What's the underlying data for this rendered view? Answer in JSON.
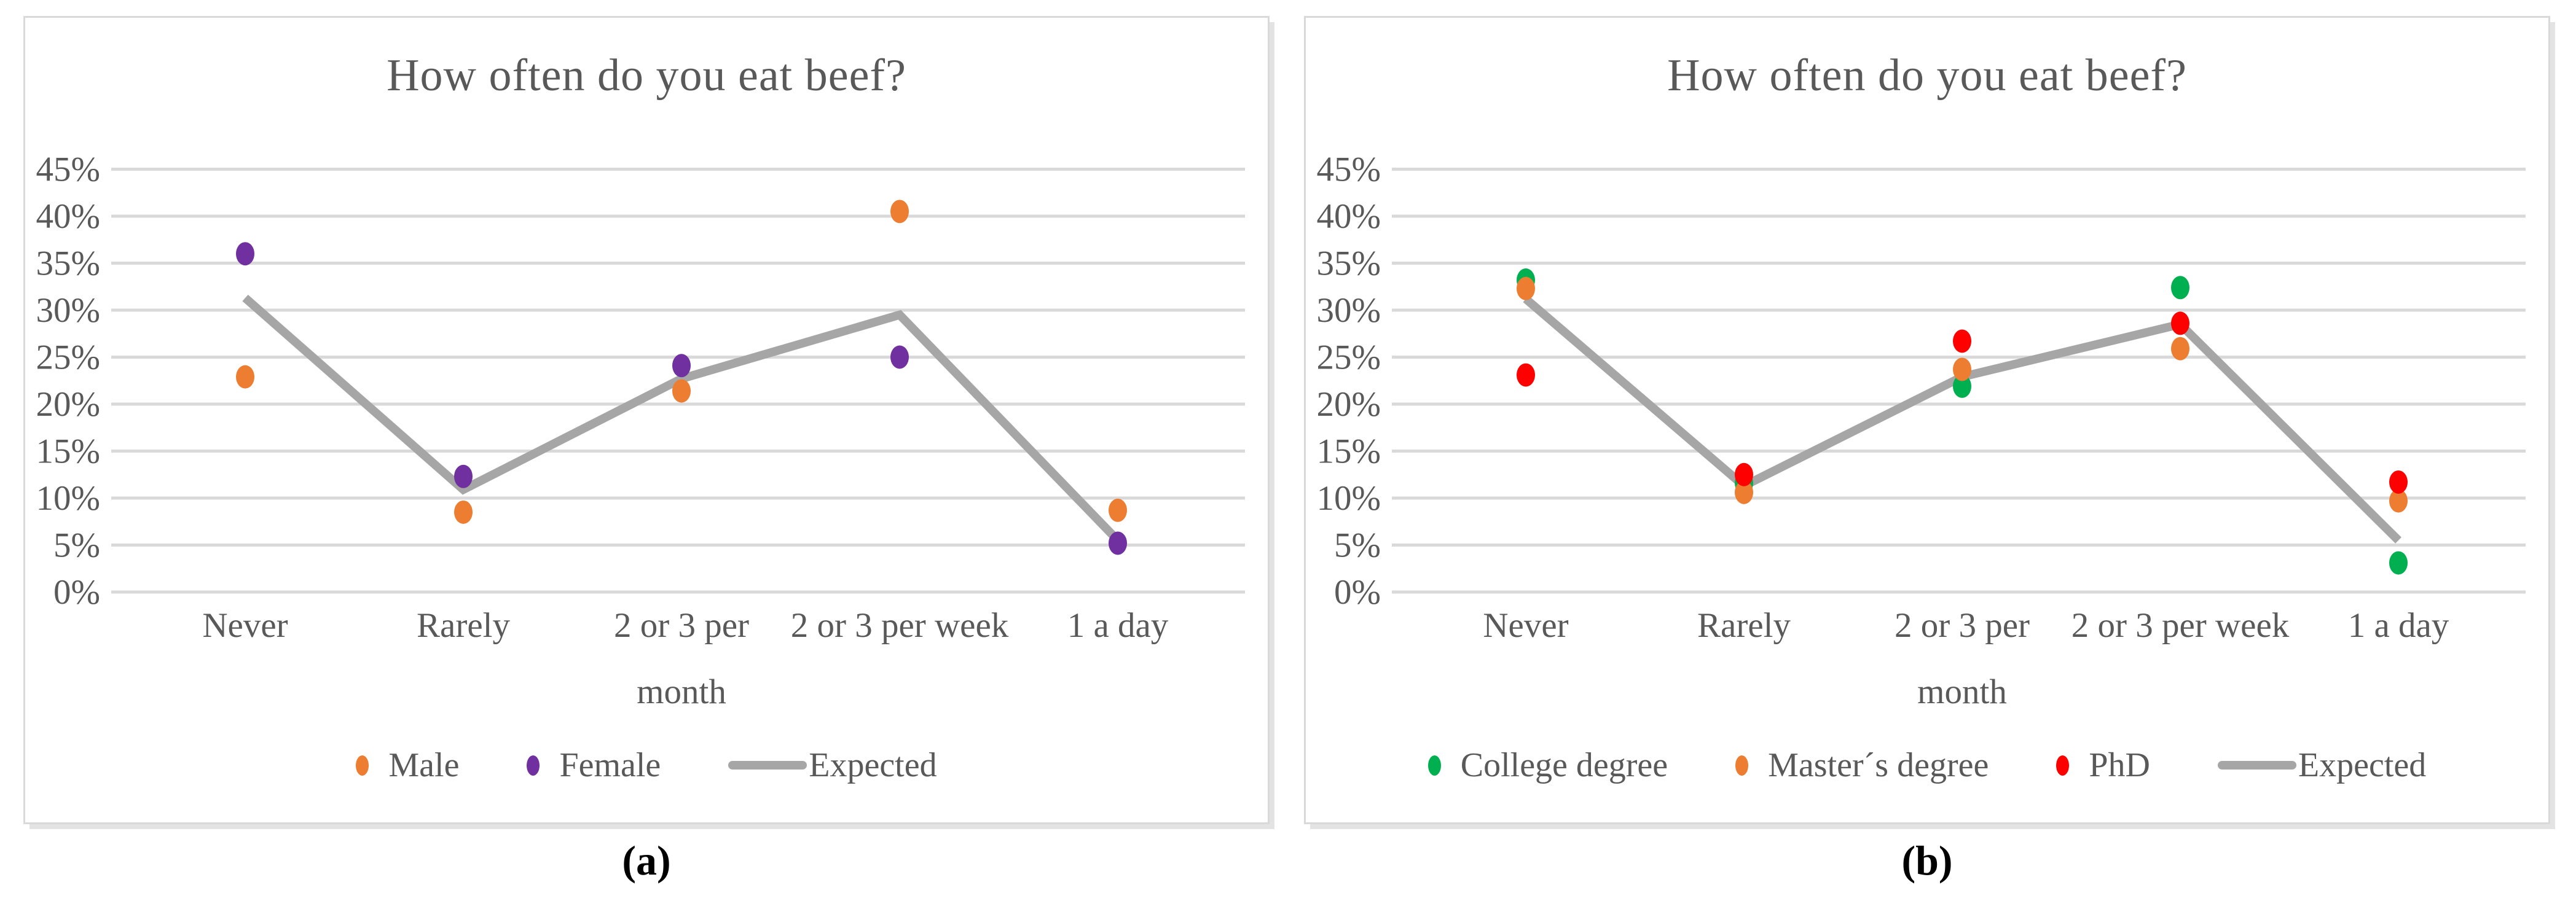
{
  "figure": {
    "captions": [
      {
        "label": "(a)"
      },
      {
        "label": "(b)"
      }
    ]
  },
  "colors": {
    "title_text": "#595959",
    "axis_text": "#595959",
    "gridline": "#D9D9D9",
    "panel_border": "#D9D9D9",
    "male_orange": "#ED7D31",
    "female_purple": "#7030A0",
    "college_green": "#00B050",
    "masters_orange": "#ED7D31",
    "phd_red": "#FF0000",
    "expected_gray": "#A6A6A6"
  },
  "chart_data": [
    {
      "type": "scatter",
      "title": "How often do you eat beef?",
      "categories": [
        [
          "Never"
        ],
        [
          "Rarely"
        ],
        [
          "2 or 3 per",
          "month"
        ],
        [
          "2 or 3 per week"
        ],
        [
          "1 a day"
        ]
      ],
      "y_ticks": {
        "labels": [
          "0%",
          "5%",
          "10%",
          "15%",
          "20%",
          "25%",
          "30%",
          "35%",
          "40%",
          "45%"
        ],
        "values": [
          0,
          5,
          10,
          15,
          20,
          25,
          30,
          35,
          40,
          45
        ]
      },
      "ylim": [
        0,
        45
      ],
      "grid": "horizontal",
      "legend_position": "bottom",
      "series": [
        {
          "name": "Male",
          "type": "scatter",
          "color": "#ED7D31",
          "values": [
            22.9,
            8.5,
            21.4,
            40.5,
            8.7
          ]
        },
        {
          "name": "Female",
          "type": "scatter",
          "color": "#7030A0",
          "values": [
            36.0,
            12.3,
            24.1,
            25.0,
            5.2
          ]
        },
        {
          "name": "Expected",
          "type": "line",
          "color": "#A6A6A6",
          "values": [
            31.3,
            10.9,
            22.7,
            29.5,
            5.5
          ]
        }
      ]
    },
    {
      "type": "scatter",
      "title": "How often do you eat beef?",
      "categories": [
        [
          "Never"
        ],
        [
          "Rarely"
        ],
        [
          "2 or 3 per",
          "month"
        ],
        [
          "2 or 3 per week"
        ],
        [
          "1 a day"
        ]
      ],
      "y_ticks": {
        "labels": [
          "0%",
          "5%",
          "10%",
          "15%",
          "20%",
          "25%",
          "30%",
          "35%",
          "40%",
          "45%"
        ],
        "values": [
          0,
          5,
          10,
          15,
          20,
          25,
          30,
          35,
          40,
          45
        ]
      },
      "ylim": [
        0,
        45
      ],
      "grid": "horizontal",
      "legend_position": "bottom",
      "series": [
        {
          "name": "College degree",
          "type": "scatter",
          "color": "#00B050",
          "values": [
            33.2,
            11.6,
            21.9,
            32.4,
            3.1
          ]
        },
        {
          "name": "Master´s degree",
          "type": "scatter",
          "color": "#ED7D31",
          "values": [
            32.3,
            10.6,
            23.7,
            25.9,
            9.7
          ]
        },
        {
          "name": "PhD",
          "type": "scatter",
          "color": "#FF0000",
          "values": [
            23.1,
            12.5,
            26.7,
            28.6,
            11.7
          ]
        },
        {
          "name": "Expected",
          "type": "line",
          "color": "#A6A6A6",
          "values": [
            31.2,
            11.3,
            22.9,
            28.5,
            5.5
          ]
        }
      ]
    }
  ]
}
